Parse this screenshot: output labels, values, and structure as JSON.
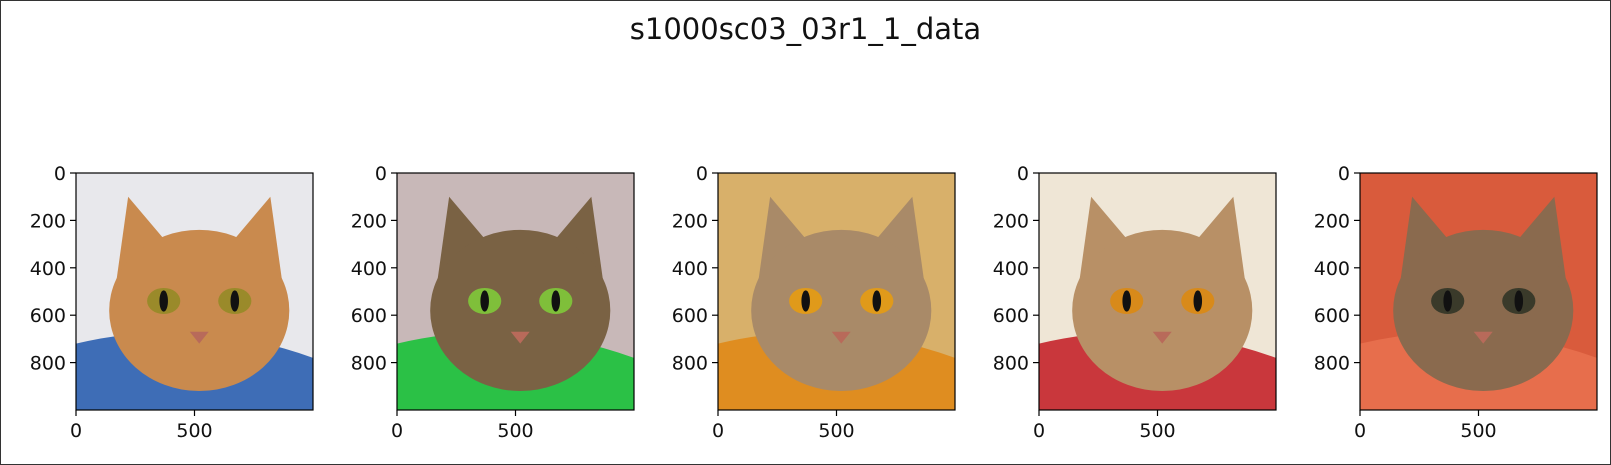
{
  "figure": {
    "title": "s1000sc03_03r1_1_data"
  },
  "chart_data": {
    "type": "image-grid",
    "title": "s1000sc03_03r1_1_data",
    "panel_count": 5,
    "xticks": [
      "0",
      "500"
    ],
    "yticks": [
      "0",
      "200",
      "400",
      "600",
      "800"
    ],
    "xlim": [
      0,
      1000
    ],
    "ylim": [
      1000,
      0
    ],
    "grid": false,
    "panels": [
      {
        "subject": "ginger tabby cat under grey fabric",
        "colors": {
          "bg": "#e8e8ec",
          "accent": "#2b5fb0",
          "cat": "#c98a4e",
          "eye": "#9a8a2a"
        }
      },
      {
        "subject": "tabby cat with green eyes on green fleece",
        "colors": {
          "bg": "#c8b8b8",
          "accent": "#19c23a",
          "cat": "#7a6244",
          "eye": "#7fbf3a"
        }
      },
      {
        "subject": "close-up abyssinian cat face with orange eyes",
        "colors": {
          "bg": "#d8b06a",
          "accent": "#e08a18",
          "cat": "#a98a68",
          "eye": "#e09a1a"
        }
      },
      {
        "subject": "abyssinian cat lying on red blanket",
        "colors": {
          "bg": "#efe6d6",
          "accent": "#c4232b",
          "cat": "#b89066",
          "eye": "#d88a1a"
        }
      },
      {
        "subject": "abyssinian kittens on orange cushion",
        "colors": {
          "bg": "#d95b3c",
          "accent": "#e8704e",
          "cat": "#8a6a4e",
          "eye": "#3a3a2a"
        }
      }
    ]
  }
}
